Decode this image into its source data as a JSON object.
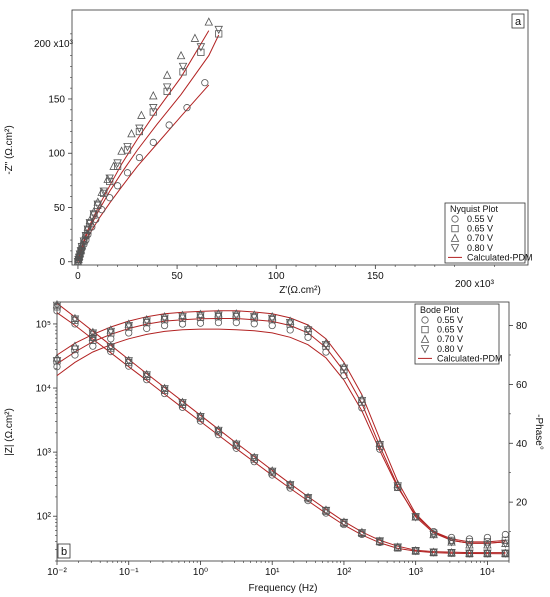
{
  "chart_data": [
    {
      "panel": "a",
      "type": "scatter",
      "xlabel": "Z'(Ω.cm²)",
      "ylabel": "-Z\" (Ω.cm²)",
      "x_multiplier_label": "200 x10³",
      "y_multiplier_label": "200 x10³",
      "xlim": [
        -3,
        227
      ],
      "ylim": [
        -3,
        232
      ],
      "x_unit_scale": 1000,
      "xticks": [
        0,
        50,
        100,
        150
      ],
      "yticks": [
        0,
        50,
        100,
        150
      ],
      "tick_labels": [
        "0",
        "50",
        "100",
        "150"
      ],
      "legend": {
        "title": "Nyquist Plot",
        "placement": "right",
        "entries": [
          "0.55 V",
          "0.65 V",
          "0.70 V",
          "0.80 V",
          "Calculated-PDM"
        ]
      },
      "series": [
        {
          "name": "0.55 V",
          "marker": "circle",
          "x": [
            0,
            0.3,
            0.6,
            1,
            1.5,
            2,
            3,
            4,
            5,
            7,
            9,
            12,
            16,
            20,
            25,
            31,
            38,
            46,
            55,
            64
          ],
          "y": [
            0,
            2,
            4,
            6,
            9,
            12,
            16,
            20,
            25,
            32,
            39,
            48,
            59,
            70,
            82,
            96,
            110,
            126,
            142,
            165
          ]
        },
        {
          "name": "0.65 V",
          "marker": "square",
          "x": [
            0,
            0.3,
            0.6,
            1,
            1.5,
            2,
            3,
            4,
            5,
            6,
            8,
            10,
            13,
            16,
            20,
            25,
            31,
            38,
            45,
            53,
            62,
            71
          ],
          "y": [
            0,
            2,
            4,
            7,
            10,
            14,
            19,
            24,
            29,
            35,
            43,
            52,
            63,
            74,
            88,
            103,
            120,
            138,
            157,
            175,
            193,
            210
          ]
        },
        {
          "name": "0.70 V",
          "marker": "triangle-up",
          "x": [
            0,
            0.3,
            0.6,
            1,
            1.5,
            2,
            3,
            4,
            5,
            6,
            8,
            10,
            12,
            15,
            18,
            22,
            27,
            32,
            38,
            45,
            52,
            59,
            66
          ],
          "y": [
            0,
            2,
            5,
            8,
            11,
            15,
            20,
            26,
            32,
            38,
            46,
            55,
            64,
            76,
            88,
            102,
            118,
            135,
            153,
            172,
            190,
            206,
            221
          ]
        },
        {
          "name": "0.80 V",
          "marker": "triangle-down",
          "x": [
            0,
            0.3,
            0.6,
            1,
            1.5,
            2,
            3,
            4,
            5,
            6,
            8,
            10,
            13,
            16,
            20,
            25,
            31,
            38,
            45,
            53,
            62,
            71
          ],
          "y": [
            0,
            2,
            4,
            7,
            10,
            14,
            19,
            24,
            30,
            36,
            44,
            53,
            65,
            77,
            91,
            106,
            123,
            142,
            161,
            180,
            198,
            214
          ]
        }
      ],
      "fits": [
        {
          "name": "Calculated-PDM",
          "color": "#b22222",
          "x": [
            0,
            1,
            2,
            4,
            7,
            11,
            16,
            22,
            30,
            40,
            52,
            66
          ],
          "y": [
            0,
            6,
            11,
            19,
            29,
            41,
            54,
            69,
            88,
            109,
            134,
            163
          ]
        },
        {
          "name": "Calculated-PDM",
          "color": "#b22222",
          "x": [
            0,
            1,
            2,
            4,
            7,
            11,
            16,
            22,
            30,
            40,
            52,
            66,
            71
          ],
          "y": [
            0,
            7,
            13,
            23,
            35,
            49,
            65,
            82,
            103,
            127,
            154,
            190,
            209
          ]
        },
        {
          "name": "Calculated-PDM",
          "color": "#b22222",
          "x": [
            0,
            1,
            2,
            4,
            7,
            11,
            16,
            22,
            30,
            40,
            52,
            66
          ],
          "y": [
            0,
            8,
            14,
            25,
            38,
            53,
            70,
            90,
            113,
            140,
            170,
            213
          ]
        }
      ]
    },
    {
      "panel": "b",
      "type": "line",
      "xlabel": "Frequency (Hz)",
      "ylabel_left": "|Z| (Ω.cm²)",
      "ylabel_right": "-Phase°",
      "xscale": "log",
      "yscale_left": "log",
      "xlim": [
        0.01,
        20000
      ],
      "ylim_left": [
        20,
        220000
      ],
      "ylim_right": [
        0,
        88
      ],
      "xticks": [
        0.01,
        0.1,
        1,
        10,
        100,
        1000,
        10000
      ],
      "xtick_labels": [
        "10⁻²",
        "10⁻¹",
        "10⁰",
        "10¹",
        "10²",
        "10³",
        "10⁴"
      ],
      "yticks_left": [
        100,
        1000,
        10000,
        100000
      ],
      "ytick_labels_left": [
        "10²",
        "10³",
        "10⁴",
        "10⁵"
      ],
      "yticks_right": [
        20,
        40,
        60,
        80
      ],
      "legend": {
        "title": "Bode Plot",
        "placement": "top-right",
        "entries": [
          "0.55 V",
          "0.65 V",
          "0.70 V",
          "0.80 V",
          "Calculated-PDM"
        ]
      },
      "frequency": [
        0.01,
        0.0178,
        0.0316,
        0.0562,
        0.1,
        0.178,
        0.316,
        0.562,
        1,
        1.78,
        3.16,
        5.62,
        10,
        17.8,
        31.6,
        56.2,
        100,
        178,
        316,
        562,
        1000,
        1780,
        3160,
        5620,
        10000,
        17800
      ],
      "modulus_series": [
        {
          "name": "0.55 V",
          "marker": "circle",
          "values": [
            160000,
            100000,
            61000,
            37000,
            22000,
            13500,
            8200,
            5000,
            3050,
            1870,
            1150,
            710,
            440,
            275,
            175,
            112,
            74,
            52,
            39,
            32,
            29,
            27.5,
            27,
            26.5,
            26.5,
            26.5
          ]
        },
        {
          "name": "0.65 V",
          "marker": "square",
          "values": [
            185000,
            114000,
            69000,
            42000,
            25000,
            15200,
            9200,
            5600,
            3400,
            2080,
            1270,
            780,
            480,
            300,
            188,
            120,
            78,
            54,
            40,
            32,
            28.5,
            27,
            26.5,
            26,
            26,
            26
          ]
        },
        {
          "name": "0.70 V",
          "marker": "triangle-up",
          "values": [
            200000,
            122000,
            74000,
            45000,
            27000,
            16300,
            9900,
            6000,
            3650,
            2220,
            1350,
            830,
            510,
            315,
            197,
            125,
            81,
            56,
            41,
            33,
            29,
            27.5,
            27,
            26.5,
            26.5,
            26.5
          ]
        },
        {
          "name": "0.80 V",
          "marker": "triangle-down",
          "values": [
            195000,
            119000,
            72000,
            44000,
            26500,
            16000,
            9700,
            5900,
            3580,
            2180,
            1330,
            815,
            500,
            310,
            194,
            123,
            80,
            55,
            41,
            33,
            29,
            27.5,
            27,
            26.5,
            26.5,
            26.5
          ]
        }
      ],
      "phase_series": [
        {
          "name": "0.55 V",
          "marker": "circle",
          "values": [
            66,
            70,
            73,
            75.5,
            77.5,
            79,
            80,
            80.5,
            80.8,
            81,
            81,
            80.6,
            80,
            78.5,
            76,
            71,
            63,
            52,
            38,
            25,
            15,
            10,
            8,
            7.5,
            8,
            9
          ]
        },
        {
          "name": "0.65 V",
          "marker": "square",
          "values": [
            68,
            72,
            75,
            77.5,
            79.5,
            81,
            82,
            82.5,
            82.8,
            83,
            83,
            82.6,
            82,
            80.5,
            78,
            73,
            65,
            54,
            39,
            25,
            15,
            9.5,
            7,
            6.5,
            6.5,
            7
          ]
        },
        {
          "name": "0.70 V",
          "marker": "triangle-up",
          "values": [
            69,
            73,
            76,
            78.5,
            80.5,
            82,
            83,
            83.5,
            83.8,
            84,
            84,
            83.6,
            83,
            81.5,
            79,
            74,
            66,
            55,
            40,
            26,
            15,
            9,
            6.5,
            5.5,
            5.5,
            6
          ]
        },
        {
          "name": "0.80 V",
          "marker": "triangle-down",
          "values": [
            68,
            72,
            75.5,
            78,
            80,
            81.5,
            82.5,
            83,
            83.3,
            83.5,
            83.5,
            83,
            82.4,
            81,
            78.5,
            73.5,
            65.5,
            54.5,
            39.5,
            25.5,
            15,
            9,
            6.5,
            5.5,
            5.5,
            6
          ]
        }
      ],
      "fit_color": "#b22222",
      "modulus_fits": [
        {
          "name": "Calculated-PDM",
          "values": [
            150000,
            95000,
            58000,
            35500,
            21500,
            13200,
            8050,
            4920,
            3000,
            1840,
            1130,
            700,
            435,
            272,
            173,
            111,
            73,
            51,
            38.5,
            31.5,
            28.5,
            27,
            26.5,
            26.2,
            26.1,
            26
          ]
        },
        {
          "name": "Calculated-PDM",
          "values": [
            210000,
            128000,
            77000,
            46500,
            28000,
            16800,
            10200,
            6200,
            3750,
            2280,
            1390,
            850,
            520,
            322,
            202,
            128,
            83,
            57,
            42,
            34,
            29.5,
            28,
            27.5,
            27,
            27,
            27
          ]
        }
      ],
      "phase_fits": [
        {
          "name": "Calculated-PDM",
          "values": [
            63,
            67.5,
            71,
            73.5,
            75.5,
            77,
            78,
            78.6,
            78.8,
            78.8,
            78.6,
            78.2,
            77.5,
            76,
            73.5,
            69,
            61.5,
            51,
            37.5,
            25,
            15.5,
            10,
            7.5,
            6.5,
            6.5,
            7
          ]
        },
        {
          "name": "Calculated-PDM",
          "values": [
            67,
            71,
            74.5,
            77,
            79,
            80.5,
            81.5,
            82,
            82.3,
            82.4,
            82.4,
            82,
            81.4,
            80,
            77.5,
            72.5,
            64.5,
            53.5,
            39,
            25.5,
            15,
            9.5,
            7,
            6,
            6,
            6.5
          ]
        },
        {
          "name": "Calculated-PDM",
          "values": [
            70,
            74,
            77,
            79.5,
            81.5,
            83,
            84,
            84.5,
            84.8,
            85,
            85,
            84.6,
            84,
            82.6,
            80.2,
            75.5,
            67.5,
            56.5,
            41.5,
            27,
            16,
            10,
            7,
            6,
            6,
            6.5
          ]
        }
      ]
    }
  ]
}
